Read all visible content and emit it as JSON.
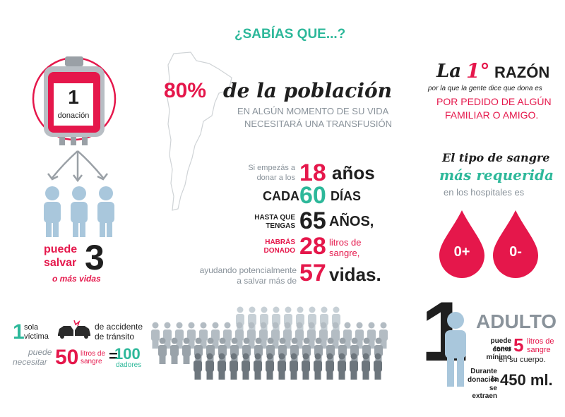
{
  "header": {
    "title": "¿SABÍAS QUE...?"
  },
  "bag": {
    "number": "1",
    "label": "donación"
  },
  "save": {
    "line1": "puede",
    "line2": "salvar",
    "count": "3",
    "line3": "o más vidas"
  },
  "population": {
    "percent": "80%",
    "phrase": "de la población",
    "sub1": "EN ALGÚN  MOMENTO DE SU VIDA",
    "sub2": "NECESITARÁ UNA TRANSFUSIÓN"
  },
  "donate": {
    "start_small1": "Si empezás a",
    "start_small2": "donar a los",
    "start_num": "18",
    "start_unit": "años",
    "every_label": "CADA",
    "every_num": "60",
    "every_unit": "DÍAS",
    "until_small1": "HASTA QUE",
    "until_small2": "TENGAS",
    "until_num": "65",
    "until_unit": "AÑOS,",
    "total_small1": "HABRÁS",
    "total_small2": "DONADO",
    "total_num": "28",
    "total_unit1": "litros de",
    "total_unit2": "sangre,",
    "help_small1": "ayudando potencialmente",
    "help_small2": "a salvar más de",
    "help_num": "57",
    "help_unit": "vidas."
  },
  "reason": {
    "title_la": "La",
    "title_num": "1°",
    "title_word": "RAZÓN",
    "sub": "por la que la gente dice que dona es",
    "answer1": "POR PEDIDO DE ALGÚN",
    "answer2": "FAMILIAR O AMIGO."
  },
  "bloodtype": {
    "line1": "El tipo de sangre",
    "line2": "más requerida",
    "line3": "en los hospitales es",
    "type1": "0+",
    "type2": "0-"
  },
  "accident": {
    "num": "1",
    "small1": "sola",
    "small2": "víctima",
    "right1": "de accidente",
    "right2": "de tránsito",
    "need1": "puede",
    "need2": "necesitar",
    "liters": "50",
    "liters_unit1": "litros de",
    "liters_unit2": "sangre",
    "equals": "=",
    "donors": "100",
    "donors_label": "dadores"
  },
  "adult": {
    "num": "1",
    "title": "ADULTO",
    "have1": "puede tener",
    "have2": "como mínimo",
    "liters": "5",
    "liters_unit1": "litros de",
    "liters_unit2": "sangre",
    "body": "en su cuerpo.",
    "during1": "Durante la",
    "during2": "donación",
    "during3": "se extraen",
    "amount": "450 ml."
  },
  "colors": {
    "red": "#e5174b",
    "teal": "#2db89a",
    "grey": "#8a939b",
    "lightblue": "#a9c7dc",
    "dark": "#1f1f1f"
  }
}
